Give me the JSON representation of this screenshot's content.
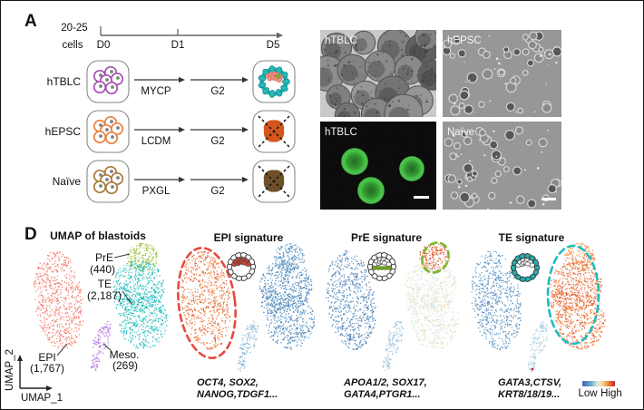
{
  "figure": {
    "panel_a_label": "A",
    "panel_d_label": "D"
  },
  "panel_a": {
    "start_label_line1": "20-25",
    "start_label_line2": "cells",
    "timeline": {
      "d0": "D0",
      "d1": "D1",
      "d5": "D5"
    },
    "rows": [
      {
        "name": "hTBLC",
        "treatment": "MYCP",
        "medium": "G2",
        "cell_color": "#a352ae",
        "outcome": "blastoid"
      },
      {
        "name": "hEPSC",
        "treatment": "LCDM",
        "medium": "G2",
        "cell_color": "#e8803c",
        "outcome": "failed",
        "blob_color": "#d4561e"
      },
      {
        "name": "Naïve",
        "treatment": "PXGL",
        "medium": "G2",
        "cell_color": "#a87a3a",
        "outcome": "failed",
        "blob_color": "#6e5129"
      }
    ],
    "blastoid_colors": {
      "ring": "#25b8b8",
      "inner": "#f09084",
      "accent": "#7ab82e"
    }
  },
  "micrographs": [
    {
      "label": "hTBLC",
      "style": "brightfield",
      "scalebar": false
    },
    {
      "label": "hEPSC",
      "style": "phase",
      "scalebar": false
    },
    {
      "label": "hTBLC",
      "style": "fluorescence",
      "scalebar": true
    },
    {
      "label": "Naïve",
      "style": "phase",
      "scalebar": true
    }
  ],
  "panel_d": {
    "umap_title": "UMAP of blastoids",
    "axis_x": "UMAP_1",
    "axis_y": "UMAP_2",
    "cluster_labels": {
      "pre": {
        "name": "PrE",
        "count": "(440)"
      },
      "te": {
        "name": "TE",
        "count": "(2,187)"
      },
      "epi": {
        "name": "EPI",
        "count": "(1,767)"
      },
      "meso": {
        "name": "Meso.",
        "count": "(269)"
      }
    },
    "signatures": [
      {
        "title": "EPI signature",
        "genes_line1": "OCT4, SOX2,",
        "genes_line2": "NANOG,TDGF1...",
        "gene_color": "#e0473c",
        "highlight_color": "#e8483f"
      },
      {
        "title": "PrE signature",
        "genes_line1": "APOA1/2, SOX17,",
        "genes_line2": "GATA4,PTGR1...",
        "gene_color": "#1e8a46",
        "highlight_color": "#7ab82e"
      },
      {
        "title": "TE signature",
        "genes_line1": "GATA3,CTSV,",
        "genes_line2": "KRT8/18/19...",
        "gene_color_line1": "#767bc2",
        "gene_color_line2": "#2aa8a8",
        "highlight_color": "#1fbdbd"
      }
    ],
    "colorbar": {
      "low": "Low",
      "high": "High"
    }
  },
  "chart_data": [
    {
      "type": "scatter",
      "title": "UMAP of blastoids",
      "xlabel": "UMAP_1",
      "ylabel": "UMAP_2",
      "legend_position": "in-plot labels",
      "grid": false,
      "clusters": [
        {
          "name": "EPI",
          "cells": 1767,
          "color": "#f2705f"
        },
        {
          "name": "PrE",
          "cells": 440,
          "color": "#93bd33"
        },
        {
          "name": "TE",
          "cells": 2187,
          "color": "#1ab8b8"
        },
        {
          "name": "Meso.",
          "cells": 269,
          "color": "#b476e0"
        }
      ]
    },
    {
      "type": "scatter",
      "title": "EPI signature",
      "colormap": "blue(Low)-red(High)",
      "marker_genes": [
        "OCT4",
        "SOX2",
        "NANOG",
        "TDGF1"
      ],
      "highlighted_cluster": "EPI",
      "expression": {
        "EPI": 0.78,
        "PrE": 0.2,
        "TE": 0.16,
        "Meso.": 0.3
      }
    },
    {
      "type": "scatter",
      "title": "PrE signature",
      "colormap": "blue(Low)-red(High)",
      "marker_genes": [
        "APOA1/2",
        "SOX17",
        "GATA4",
        "PTGR1"
      ],
      "highlighted_cluster": "PrE",
      "expression": {
        "EPI": 0.15,
        "PrE": 0.82,
        "TE": 0.5,
        "Meso.": 0.35
      }
    },
    {
      "type": "scatter",
      "title": "TE signature",
      "colormap": "blue(Low)-red(High)",
      "marker_genes": [
        "GATA3",
        "CTSV",
        "KRT8/18/19"
      ],
      "highlighted_cluster": "TE",
      "expression": {
        "EPI": 0.18,
        "PrE": 0.72,
        "TE": 0.78,
        "Meso.": 0.36
      }
    }
  ]
}
